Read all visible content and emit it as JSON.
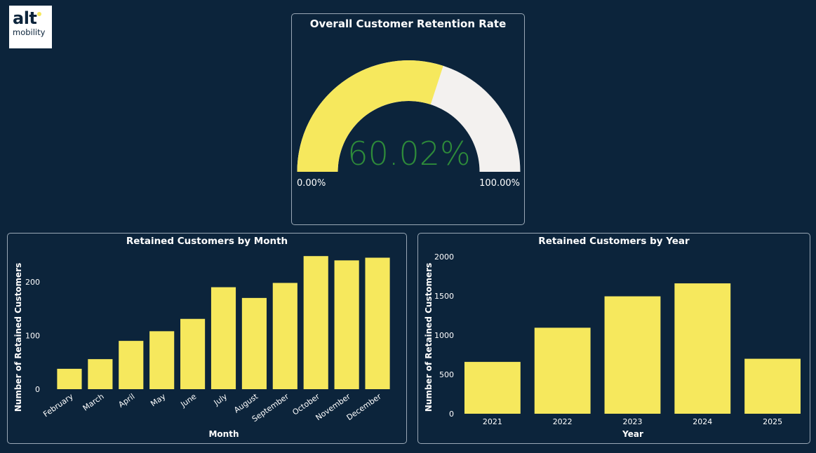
{
  "logo": {
    "line1": "alt",
    "line2": "mobility",
    "dot_color": "#f6e85d"
  },
  "colors": {
    "background": "#0c243b",
    "bar": "#f6e85d",
    "gauge_fill": "#f6e85d",
    "gauge_track": "#f3f1ef",
    "gauge_value": "#2e8b3a"
  },
  "gauge": {
    "title": "Overall Customer Retention Rate",
    "value": 60.02,
    "value_label": "60.02%",
    "min_label": "0.00%",
    "max_label": "100.00%",
    "min": 0,
    "max": 100
  },
  "chart_data": [
    {
      "type": "bar",
      "title": "Retained Customers by Month",
      "xlabel": "Month",
      "ylabel": "Number of Retained Customers",
      "categories": [
        "February",
        "March",
        "April",
        "May",
        "June",
        "July",
        "August",
        "September",
        "October",
        "November",
        "December"
      ],
      "values": [
        38,
        56,
        90,
        108,
        131,
        190,
        170,
        198,
        248,
        240,
        245
      ],
      "ylim": [
        0,
        260
      ],
      "yticks": [
        0,
        100,
        200
      ],
      "grid": false,
      "legend": "none"
    },
    {
      "type": "bar",
      "title": "Retained Customers by Year",
      "xlabel": "Year",
      "ylabel": "Number of Retained Customers",
      "categories": [
        "2021",
        "2022",
        "2023",
        "2024",
        "2025"
      ],
      "values": [
        660,
        1095,
        1495,
        1660,
        700
      ],
      "ylim": [
        0,
        2000
      ],
      "yticks": [
        0,
        500,
        1000,
        1500,
        2000
      ],
      "grid": false,
      "legend": "none"
    }
  ]
}
